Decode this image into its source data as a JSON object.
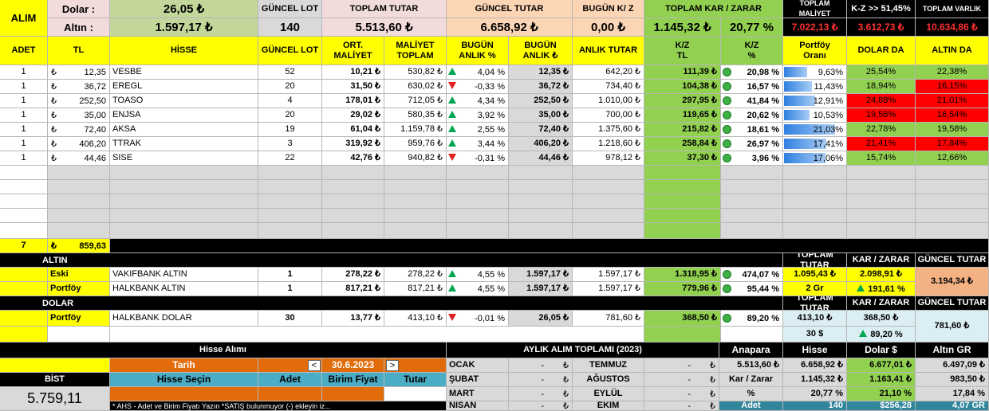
{
  "header": {
    "alim": "ALIM",
    "dolar_label": "Dolar :",
    "dolar_value": "26,05 ₺",
    "altin_label": "Altın :",
    "altin_value": "1.597,17 ₺",
    "guncel_lot_title": "GÜNCEL LOT",
    "guncel_lot_value": "140",
    "toplam_tutar_title": "TOPLAM TUTAR",
    "toplam_tutar_value": "5.513,60 ₺",
    "guncel_tutar_title": "GÜNCEL TUTAR",
    "guncel_tutar_value": "6.658,92 ₺",
    "bugun_kz_title": "BUGÜN  K/ Z",
    "bugun_kz_value": "0,00 ₺",
    "toplam_kz_title": "TOPLAM KAR / ZARAR",
    "toplam_kz_value": "1.145,32 ₺",
    "toplam_kz_pct": "20,77 %",
    "toplam_maliyet_title": "TOPLAM MALİYET",
    "toplam_maliyet_value": "7.022,13 ₺",
    "kz_title": "K-Z >> 51,45%",
    "kz_value": "3.612,73 ₺",
    "toplam_varlik_title": "TOPLAM VARLIK",
    "toplam_varlik_value": "10.634,86 ₺"
  },
  "columns": [
    "ADET",
    "TL",
    "HİSSE",
    "GÜNCEL LOT",
    "ORT.\nMALİYET",
    "MALİYET\nTOPLAM",
    "BUGÜN\nANLIK %",
    "BUGÜN\nANLIK ₺",
    "ANLIK TUTAR",
    "K/Z\nTL",
    "K/Z\n%",
    "Portföy\nOranı",
    "DOLAR DA",
    "ALTIN DA"
  ],
  "stocks": [
    {
      "adet": "1",
      "tl_sym": "₺",
      "tl": "12,35",
      "hisse": "VESBE",
      "lot": "52",
      "ort": "10,21 ₺",
      "maliyet": "530,82 ₺",
      "dir": "up",
      "pct": "4,04 %",
      "anlik": "12,35 ₺",
      "tutar": "642,20 ₺",
      "kz": "111,39 ₺",
      "kzp": "20,98 %",
      "oran": "9,63%",
      "oran_v": 0.0963,
      "dolar": "25,54%",
      "dolar_c": "g",
      "altin": "22,38%",
      "altin_c": "g"
    },
    {
      "adet": "1",
      "tl_sym": "₺",
      "tl": "36,72",
      "hisse": "EREGL",
      "lot": "20",
      "ort": "31,50 ₺",
      "maliyet": "630,02 ₺",
      "dir": "dn",
      "pct": "-0,33 %",
      "anlik": "36,72 ₺",
      "tutar": "734,40 ₺",
      "kz": "104,38 ₺",
      "kzp": "16,57 %",
      "oran": "11,43%",
      "oran_v": 0.1143,
      "dolar": "18,94%",
      "dolar_c": "g",
      "altin": "16,15%",
      "altin_c": "r"
    },
    {
      "adet": "1",
      "tl_sym": "₺",
      "tl": "252,50",
      "hisse": "TOASO",
      "lot": "4",
      "ort": "178,01 ₺",
      "maliyet": "712,05 ₺",
      "dir": "up",
      "pct": "4,34 %",
      "anlik": "252,50 ₺",
      "tutar": "1.010,00 ₺",
      "kz": "297,95 ₺",
      "kzp": "41,84 %",
      "oran": "12,91%",
      "oran_v": 0.1291,
      "dolar": "24,88%",
      "dolar_c": "r",
      "altin": "21,01%",
      "altin_c": "r"
    },
    {
      "adet": "1",
      "tl_sym": "₺",
      "tl": "35,00",
      "hisse": "ENJSA",
      "lot": "20",
      "ort": "29,02 ₺",
      "maliyet": "580,35 ₺",
      "dir": "up",
      "pct": "3,92 %",
      "anlik": "35,00 ₺",
      "tutar": "700,00 ₺",
      "kz": "119,65 ₺",
      "kzp": "20,62 %",
      "oran": "10,53%",
      "oran_v": 0.1053,
      "dolar": "19,58%",
      "dolar_c": "r",
      "altin": "16,54%",
      "altin_c": "r"
    },
    {
      "adet": "1",
      "tl_sym": "₺",
      "tl": "72,40",
      "hisse": "AKSA",
      "lot": "19",
      "ort": "61,04 ₺",
      "maliyet": "1.159,78 ₺",
      "dir": "up",
      "pct": "2,55 %",
      "anlik": "72,40 ₺",
      "tutar": "1.375,60 ₺",
      "kz": "215,82 ₺",
      "kzp": "18,61 %",
      "oran": "21,03%",
      "oran_v": 0.2103,
      "dolar": "22,78%",
      "dolar_c": "g",
      "altin": "19,58%",
      "altin_c": "g"
    },
    {
      "adet": "1",
      "tl_sym": "₺",
      "tl": "406,20",
      "hisse": "TTRAK",
      "lot": "3",
      "ort": "319,92 ₺",
      "maliyet": "959,76 ₺",
      "dir": "up",
      "pct": "3,44 %",
      "anlik": "406,20 ₺",
      "tutar": "1.218,60 ₺",
      "kz": "258,84 ₺",
      "kzp": "26,97 %",
      "oran": "17,41%",
      "oran_v": 0.1741,
      "dolar": "21,41%",
      "dolar_c": "r",
      "altin": "17,84%",
      "altin_c": "r"
    },
    {
      "adet": "1",
      "tl_sym": "₺",
      "tl": "44,46",
      "hisse": "SISE",
      "lot": "22",
      "ort": "42,76 ₺",
      "maliyet": "940,82 ₺",
      "dir": "dn",
      "pct": "-0,31 %",
      "anlik": "44,46 ₺",
      "tutar": "978,12 ₺",
      "kz": "37,30 ₺",
      "kzp": "3,96 %",
      "oran": "17,06%",
      "oran_v": 0.1706,
      "dolar": "15,74%",
      "dolar_c": "g",
      "altin": "12,66%",
      "altin_c": "g"
    }
  ],
  "totals": {
    "adet": "7",
    "tl_sym": "₺",
    "tl": "859,63"
  },
  "altin": {
    "title": "ALTIN",
    "right_titles": [
      "TOPLAM TUTAR",
      "KAR / ZARAR",
      "GÜNCEL TUTAR"
    ],
    "rows": [
      {
        "label": "Eski",
        "name": "VAKIFBANK ALTIN",
        "lot": "1",
        "ort": "278,22 ₺",
        "maliyet": "278,22 ₺",
        "pct": "4,55 %",
        "anlik": "1.597,17 ₺",
        "tutar": "1.597,17 ₺",
        "kz": "1.318,95 ₺",
        "kzp": "474,07 %"
      },
      {
        "label": "Portföy",
        "name": "HALKBANK ALTIN",
        "lot": "1",
        "ort": "817,21 ₺",
        "maliyet": "817,21 ₺",
        "pct": "4,55 %",
        "anlik": "1.597,17 ₺",
        "tutar": "1.597,17 ₺",
        "kz": "779,96 ₺",
        "kzp": "95,44 %"
      }
    ],
    "toplam_tutar": "1.095,43 ₺",
    "gr": "2 Gr",
    "kar_zarar": "2.098,91 ₺",
    "kar_zarar_pct": "191,61 %",
    "guncel_tutar": "3.194,34 ₺"
  },
  "dolar": {
    "title": "DOLAR",
    "right_titles": [
      "TOPLAM TUTAR",
      "KAR / ZARAR",
      "GÜNCEL TUTAR"
    ],
    "row": {
      "label": "Portföy",
      "name": "HALKBANK DOLAR",
      "lot": "30",
      "ort": "13,77 ₺",
      "maliyet": "413,10 ₺",
      "pct": "-0,01 %",
      "anlik": "26,05 ₺",
      "tutar": "781,60 ₺",
      "kz": "368,50 ₺",
      "kzp": "89,20 %"
    },
    "toplam_tutar": "413,10 ₺",
    "usd": "30 $",
    "kar_zarar": "368,50 ₺",
    "kar_zarar_pct": "89,20 %",
    "guncel_tutar": "781,60 ₺"
  },
  "hisse_alimi": {
    "title": "Hisse Alımı",
    "tarih_label": "Tarih",
    "prev": "<",
    "date": "30.6.2023",
    "next": ">",
    "hisse_secin": "Hisse Seçin",
    "adet": "Adet",
    "birim_fiyat": "Birim Fiyat",
    "tutar": "Tutar",
    "note": "* AHS - Adet ve Birim Fiyatı Yazın    *SATIŞ  bulunmuyor (-) ekleyin iz..."
  },
  "bist": {
    "label": "BİST",
    "value": "5.759,11"
  },
  "aylik": {
    "title": "AYLIK ALIM TOPLAMI (2023)",
    "months_left": [
      {
        "m": "OCAK",
        "v": "-",
        "s": "₺"
      },
      {
        "m": "ŞUBAT",
        "v": "-",
        "s": "₺"
      },
      {
        "m": "MART",
        "v": "-",
        "s": "₺"
      },
      {
        "m": "NİSAN",
        "v": "-",
        "s": "₺"
      }
    ],
    "months_right": [
      {
        "m": "TEMMUZ",
        "v": "-",
        "s": "₺"
      },
      {
        "m": "AĞUSTOS",
        "v": "-",
        "s": "₺"
      },
      {
        "m": "EYLÜL",
        "v": "-",
        "s": "₺"
      },
      {
        "m": "EKİM",
        "v": "-",
        "s": "₺"
      }
    ]
  },
  "summary": {
    "headers": [
      "Anapara",
      "Hisse",
      "Dolar $",
      "Altın GR"
    ],
    "row1": [
      "5.513,60 ₺",
      "6.658,92 ₺",
      "6.677,01 ₺",
      "6.497,09 ₺"
    ],
    "row2": [
      "Kar / Zarar",
      "1.145,32 ₺",
      "1.163,41 ₺",
      "983,50 ₺"
    ],
    "row3": [
      "%",
      "20,77 %",
      "21,10 %",
      "17,84 %"
    ],
    "row4": [
      "Adet",
      "140",
      "$256,28",
      "4,07 GR"
    ]
  },
  "colors": {
    "yellow": "#ffff00",
    "green": "#92d050",
    "red": "#ff0000",
    "black": "#000000"
  }
}
